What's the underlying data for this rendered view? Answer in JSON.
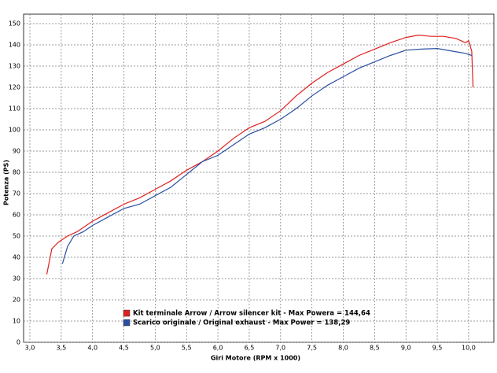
{
  "chart_data": {
    "type": "line",
    "xlabel": "Giri Motore (RPM x 1000)",
    "ylabel": "Potenza (PS)",
    "xlim": [
      3,
      10.4
    ],
    "ylim": [
      0,
      150
    ],
    "xticks": [
      {
        "value": 3,
        "label": "3,0"
      },
      {
        "value": 3.5,
        "label": "3,5"
      },
      {
        "value": 4,
        "label": "4,0"
      },
      {
        "value": 4.5,
        "label": "4,5"
      },
      {
        "value": 5,
        "label": "5,0"
      },
      {
        "value": 5.5,
        "label": "5,5"
      },
      {
        "value": 6,
        "label": "6,0"
      },
      {
        "value": 6.5,
        "label": "6,5"
      },
      {
        "value": 7,
        "label": "7,0"
      },
      {
        "value": 7.5,
        "label": "7,5"
      },
      {
        "value": 8,
        "label": "8,0"
      },
      {
        "value": 8.5,
        "label": "8,5"
      },
      {
        "value": 9,
        "label": "9,0"
      },
      {
        "value": 9.5,
        "label": "9,5"
      },
      {
        "value": 10,
        "label": "10,0"
      }
    ],
    "yticks": [
      0,
      10,
      20,
      30,
      40,
      50,
      60,
      70,
      80,
      90,
      100,
      110,
      120,
      130,
      140,
      150
    ],
    "grid": true,
    "series": [
      {
        "name": "Kit terminale Arrow / Arrow silencer kit - Max Powera = 144,64",
        "color": "#e02020",
        "x": [
          3.27,
          3.35,
          3.45,
          3.6,
          3.75,
          4.0,
          4.25,
          4.5,
          4.75,
          5.0,
          5.25,
          5.5,
          5.75,
          6.0,
          6.25,
          6.5,
          6.75,
          7.0,
          7.25,
          7.5,
          7.75,
          8.0,
          8.25,
          8.5,
          8.75,
          9.0,
          9.2,
          9.4,
          9.6,
          9.8,
          9.95,
          10.0,
          10.05,
          10.07
        ],
        "values": [
          32,
          44,
          47,
          50,
          52,
          57,
          61,
          65,
          68,
          72,
          76,
          81,
          85,
          90,
          96,
          101,
          104,
          109,
          116,
          122,
          127,
          131,
          135,
          138,
          141,
          143.5,
          144.6,
          144,
          144,
          143,
          141,
          142,
          137,
          120
        ]
      },
      {
        "name": "Scarico originale / Original exhaust - Max Power = 138,29",
        "color": "#2a4fa0",
        "x": [
          3.52,
          3.6,
          3.7,
          3.85,
          4.0,
          4.25,
          4.5,
          4.75,
          5.0,
          5.25,
          5.5,
          5.75,
          6.0,
          6.25,
          6.5,
          6.75,
          7.0,
          7.25,
          7.5,
          7.75,
          8.0,
          8.25,
          8.5,
          8.75,
          9.0,
          9.25,
          9.5,
          9.75,
          9.95,
          10.05
        ],
        "values": [
          37,
          45,
          50,
          52,
          55,
          59,
          63,
          65,
          69,
          73,
          79,
          85,
          88,
          93,
          98,
          101,
          105,
          110,
          116,
          121,
          125,
          129,
          132,
          135,
          137.5,
          138,
          138.3,
          137,
          136,
          135
        ]
      }
    ]
  }
}
